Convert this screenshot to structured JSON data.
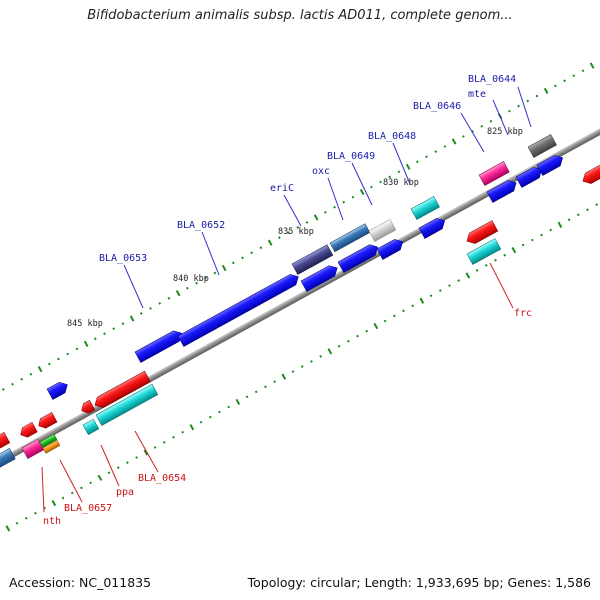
{
  "header": {
    "title": "Bifidobacterium animalis subsp. lactis AD011, complete genom..."
  },
  "footer": {
    "accession": "Accession: NC_011835",
    "topology": "Topology: circular; Length: 1,933,695 bp; Genes: 1,586"
  },
  "colors": {
    "backbone": "#8a8a8a",
    "tick": "#1d8a1d",
    "forward_label": "#1a1aaa",
    "reverse_label": "#cc1111",
    "leader_forward": "#3333cc",
    "leader_reverse": "#cc2222"
  },
  "scale_labels": [
    {
      "text": "845 kbp",
      "kbp": 845
    },
    {
      "text": "840 kbp",
      "kbp": 840
    },
    {
      "text": "835 kbp",
      "kbp": 835
    },
    {
      "text": "830 kbp",
      "kbp": 830
    },
    {
      "text": "825 kbp",
      "kbp": 825
    }
  ],
  "gene_labels_forward": [
    "BLA_0644",
    "mte",
    "BLA_0646",
    "BLA_0648",
    "BLA_0649",
    "oxc",
    "eriC",
    "BLA_0652",
    "BLA_0653"
  ],
  "gene_labels_reverse": [
    "frc",
    "BLA_0654",
    "ppa",
    "BLA_0657",
    "nth"
  ]
}
